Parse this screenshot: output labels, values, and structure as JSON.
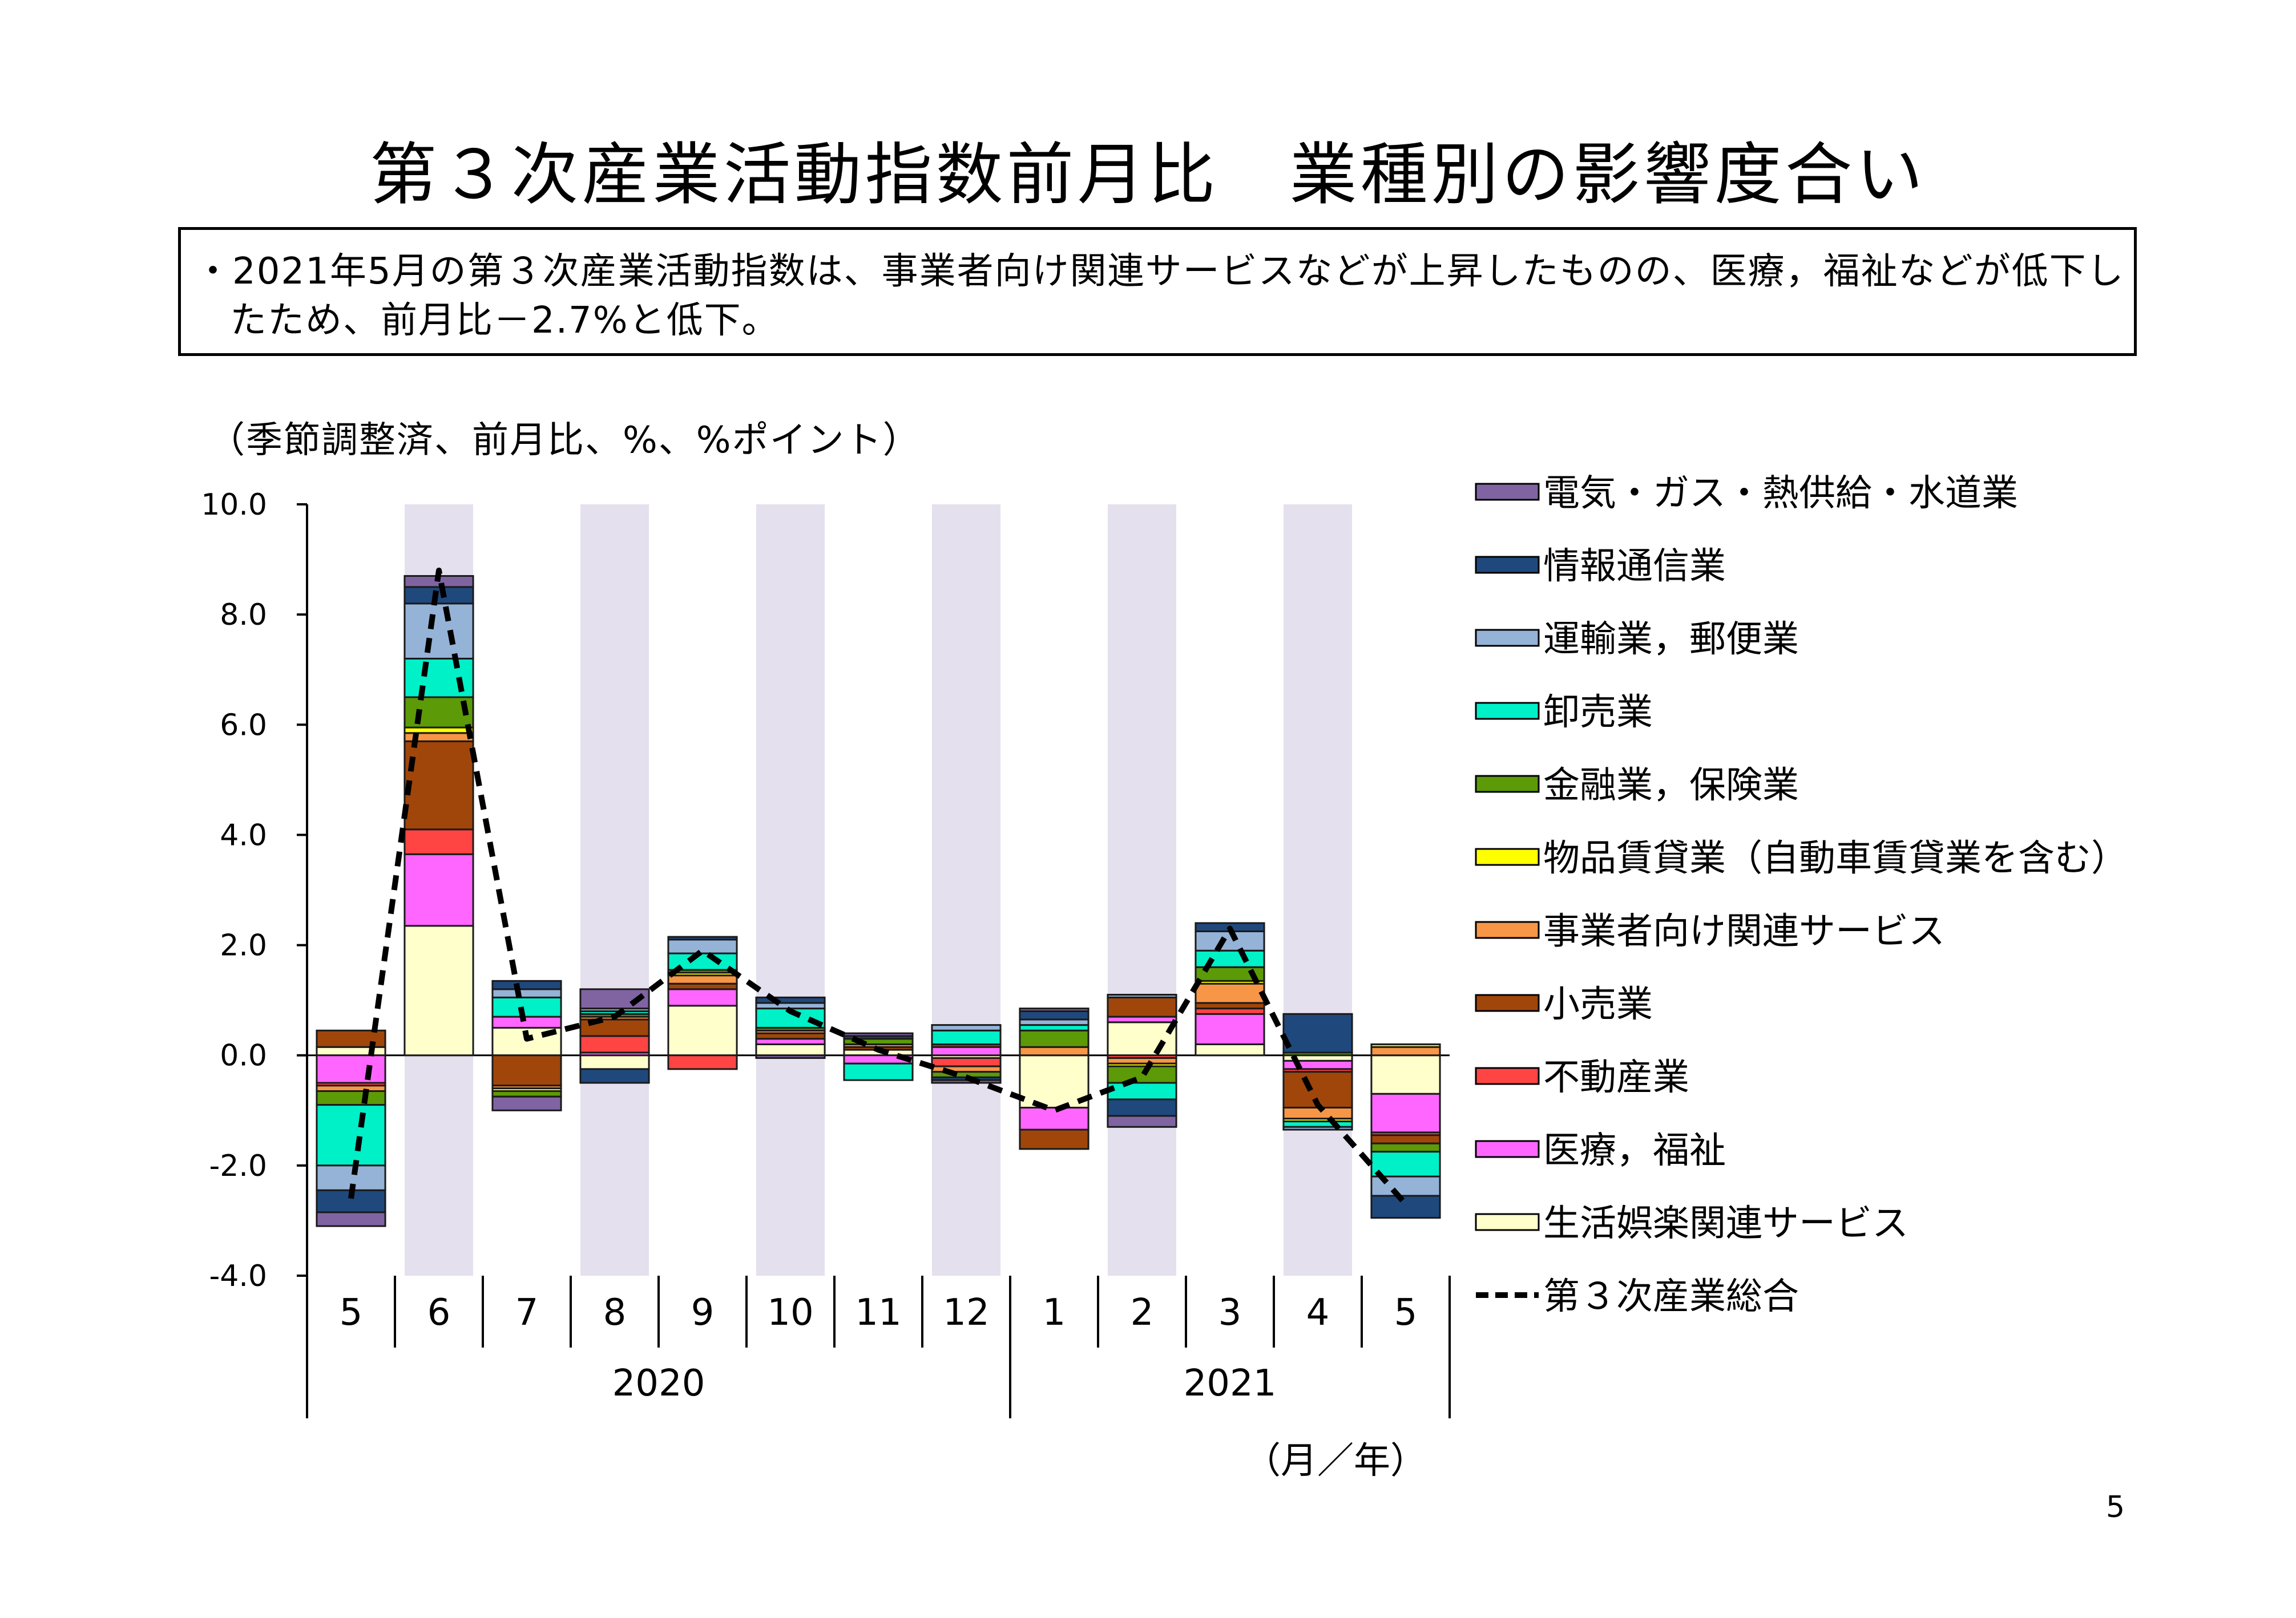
{
  "title": "第３次産業活動指数前月比　業種別の影響度合い",
  "summary": "・2021年5月の第３次産業活動指数は、事業者向け関連サービスなどが上昇したものの、医療，福祉などが低下したため、前月比－2.7%と低下。",
  "unit_note": "（季節調整済、前月比、%、%ポイント）",
  "axis_unit_note": "（月／年）",
  "page_number": "5",
  "chart_data": {
    "type": "bar",
    "stacked": true,
    "categories": [
      "5",
      "6",
      "7",
      "8",
      "9",
      "10",
      "11",
      "12",
      "1",
      "2",
      "3",
      "4",
      "5"
    ],
    "year_groups": [
      {
        "label": "2020",
        "count": 8
      },
      {
        "label": "2021",
        "count": 5
      }
    ],
    "ylim": [
      -4.0,
      10.0
    ],
    "yticks": [
      -4.0,
      -2.0,
      0.0,
      2.0,
      4.0,
      6.0,
      8.0,
      10.0
    ],
    "ytick_labels": [
      "-4.0",
      "-2.0",
      "0.0",
      "2.0",
      "4.0",
      "6.0",
      "8.0",
      "10.0"
    ],
    "shaded_categories": [
      1,
      3,
      5,
      7,
      9,
      11
    ],
    "shade_color": "#e4e0ee",
    "legend_position": "right",
    "series": [
      {
        "name": "生活娯楽関連サービス",
        "color": "#ffffcc",
        "values": [
          0.15,
          2.35,
          0.5,
          -0.25,
          0.9,
          0.2,
          0.1,
          -0.05,
          -0.95,
          0.6,
          0.2,
          -0.1,
          -0.7
        ]
      },
      {
        "name": "医療，福祉",
        "color": "#ff66ff",
        "values": [
          -0.5,
          1.3,
          0.2,
          0.05,
          0.3,
          0.1,
          -0.15,
          0.15,
          -0.4,
          0.1,
          0.55,
          -0.15,
          -0.7
        ]
      },
      {
        "name": "不動産業",
        "color": "#ff4444",
        "values": [
          -0.05,
          0.45,
          0.0,
          0.3,
          -0.25,
          0.0,
          0.0,
          -0.15,
          0.0,
          -0.05,
          0.1,
          -0.05,
          -0.05
        ]
      },
      {
        "name": "小売業",
        "color": "#a0460a",
        "values": [
          0.3,
          1.6,
          -0.55,
          0.3,
          0.1,
          0.1,
          0.05,
          0.05,
          -0.35,
          0.35,
          0.1,
          -0.65,
          -0.15
        ]
      },
      {
        "name": "事業者向け関連サービス",
        "color": "#f79646",
        "values": [
          -0.1,
          0.15,
          -0.05,
          0.05,
          0.15,
          0.05,
          0.05,
          -0.1,
          0.15,
          -0.1,
          0.35,
          -0.2,
          0.15
        ]
      },
      {
        "name": "物品賃貸業（自動車賃貸業を含む）",
        "color": "#ffff00",
        "values": [
          0.0,
          0.1,
          -0.05,
          0.0,
          0.05,
          0.0,
          0.0,
          0.0,
          0.0,
          -0.05,
          0.05,
          -0.05,
          0.05
        ]
      },
      {
        "name": "金融業，保険業",
        "color": "#5c9a08",
        "values": [
          -0.25,
          0.55,
          -0.1,
          0.05,
          0.05,
          0.05,
          0.1,
          -0.1,
          0.3,
          -0.3,
          0.25,
          0.05,
          -0.15
        ]
      },
      {
        "name": "卸売業",
        "color": "#00f0c8",
        "values": [
          -1.1,
          0.7,
          0.35,
          0.05,
          0.3,
          0.35,
          -0.3,
          0.25,
          0.1,
          -0.3,
          0.3,
          -0.1,
          -0.45
        ]
      },
      {
        "name": "運輸業，郵便業",
        "color": "#95b3d7",
        "values": [
          -0.45,
          1.0,
          0.15,
          0.05,
          0.25,
          0.1,
          0.0,
          0.1,
          0.1,
          0.05,
          0.35,
          -0.05,
          -0.35
        ]
      },
      {
        "name": "情報通信業",
        "color": "#1f497d",
        "values": [
          -0.4,
          0.3,
          0.15,
          -0.25,
          0.05,
          0.1,
          0.05,
          -0.05,
          0.15,
          -0.3,
          0.15,
          0.7,
          -0.4
        ]
      },
      {
        "name": "電気・ガス・熱供給・水道業",
        "color": "#8064a2",
        "values": [
          -0.25,
          0.2,
          -0.25,
          0.35,
          0.0,
          -0.05,
          0.05,
          -0.05,
          0.05,
          -0.2,
          0.0,
          0.0,
          0.0
        ]
      }
    ],
    "line": {
      "name": "第３次産業総合",
      "color": "#000000",
      "style": "dashed",
      "values": [
        -2.6,
        8.8,
        0.3,
        0.7,
        1.9,
        0.8,
        0.1,
        -0.4,
        -1.0,
        -0.4,
        2.3,
        -0.9,
        -2.7
      ]
    }
  }
}
